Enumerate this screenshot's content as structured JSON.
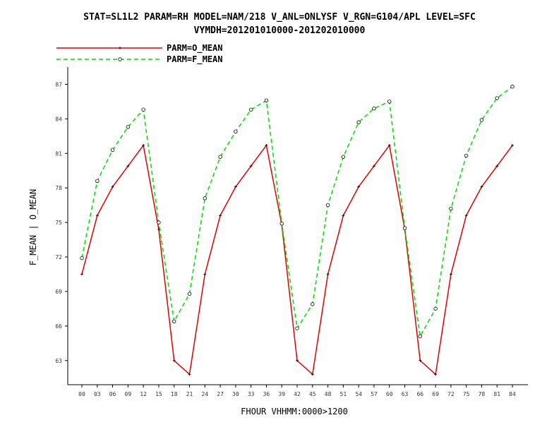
{
  "chart_data": {
    "type": "line",
    "title_line1": "STAT=SL1L2 PARAM=RH MODEL=NAM/218 V_ANL=ONLYSF V_RGN=G104/APL LEVEL=SFC",
    "title_line2": "VYMDH=201201010000-201202010000",
    "xlabel": "FHOUR VHHMM:0000>1200",
    "ylabel": "F_MEAN | O_MEAN",
    "ylim": [
      60.9,
      88.5
    ],
    "categories": [
      "00",
      "03",
      "06",
      "09",
      "12",
      "15",
      "18",
      "21",
      "24",
      "27",
      "30",
      "33",
      "36",
      "39",
      "42",
      "45",
      "48",
      "51",
      "54",
      "57",
      "60",
      "63",
      "66",
      "69",
      "72",
      "75",
      "78",
      "81",
      "84"
    ],
    "yticks": [
      63,
      66,
      69,
      72,
      75,
      78,
      81,
      84,
      87
    ],
    "grid": false,
    "legend_position": "top-left",
    "series": [
      {
        "name": "PARM=O_MEAN",
        "color": "#e00000",
        "dash": "solid",
        "marker": "plus",
        "x": [
          0,
          3,
          6,
          9,
          12,
          15,
          18,
          21,
          24,
          27,
          30,
          33,
          36,
          39,
          42,
          45,
          48,
          51,
          54,
          57,
          60,
          63,
          66,
          69,
          72,
          75,
          78,
          81,
          84
        ],
        "values": [
          70.5,
          75.6,
          78.1,
          79.9,
          81.7,
          74.4,
          63.0,
          61.8,
          70.5,
          75.6,
          78.1,
          79.9,
          81.7,
          74.8,
          63.0,
          61.8,
          70.5,
          75.6,
          78.1,
          79.9,
          81.7,
          74.4,
          63.0,
          61.8,
          70.5,
          75.6,
          78.1,
          79.9,
          81.7
        ]
      },
      {
        "name": "PARM=F_MEAN",
        "color": "#00dd00",
        "dash": "dashed",
        "marker": "circle",
        "x": [
          0,
          3,
          6,
          9,
          12,
          15,
          18,
          21,
          24,
          27,
          30,
          33,
          36,
          39,
          42,
          45,
          48,
          51,
          54,
          57,
          60,
          63,
          66,
          69,
          72,
          75,
          78,
          81,
          84
        ],
        "values": [
          71.9,
          78.6,
          81.3,
          83.3,
          84.8,
          75.0,
          66.4,
          68.8,
          77.1,
          80.7,
          82.9,
          84.8,
          85.6,
          74.9,
          65.8,
          67.9,
          76.5,
          80.7,
          83.7,
          84.9,
          85.5,
          74.5,
          65.1,
          67.5,
          76.2,
          80.8,
          83.9,
          85.8,
          86.8
        ]
      }
    ]
  }
}
